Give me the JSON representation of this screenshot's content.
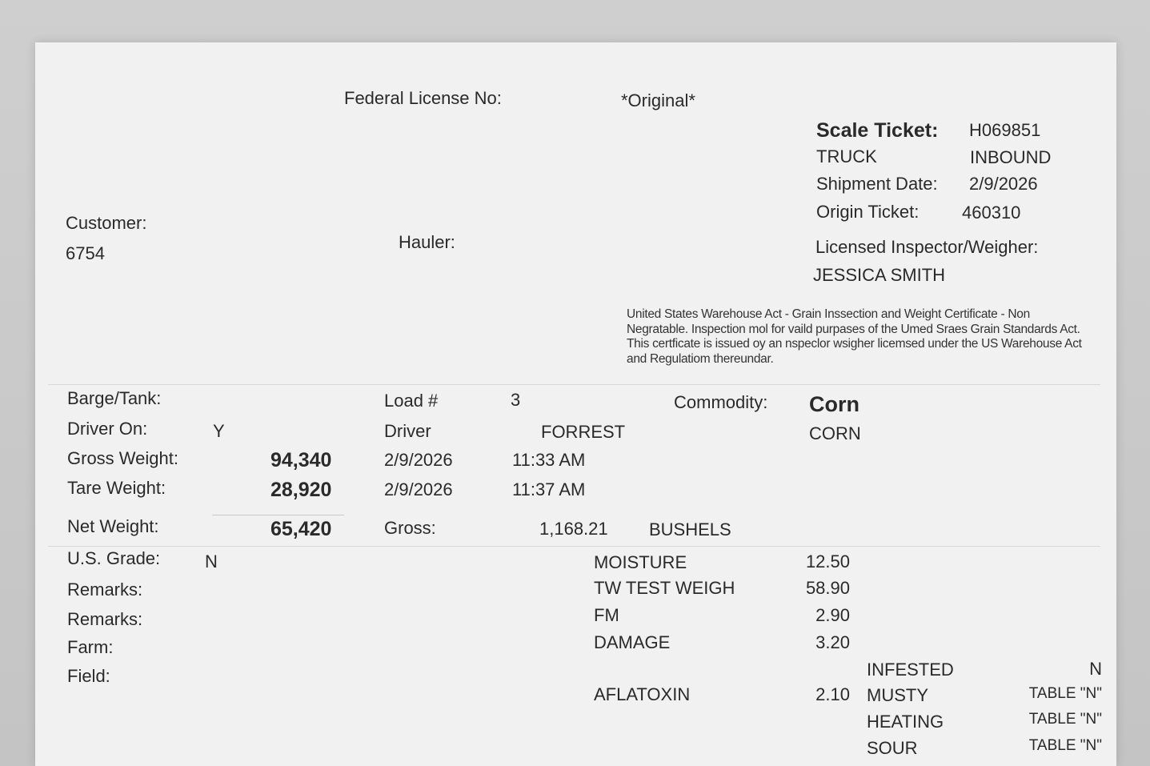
{
  "header": {
    "federal_license_label": "Federal License No:",
    "copy_type": "*Original*",
    "scale_ticket_label": "Scale Ticket:",
    "scale_ticket_no": "H069851",
    "mode": "TRUCK",
    "direction": "INBOUND",
    "shipment_date_label": "Shipment Date:",
    "shipment_date": "2/9/2026",
    "origin_ticket_label": "Origin Ticket:",
    "origin_ticket": "460310",
    "inspector_label": "Licensed Inspector/Weigher:",
    "inspector_name": "JESSICA SMITH",
    "customer_label": "Customer:",
    "customer_no": "6754",
    "hauler_label": "Hauler:",
    "certificate_text": "United States Warehouse Act - Grain Inssection and Weight Certificate - Non Negratable.  Inspection mol for vaild purpases of the Umed Sraes Grain Standards Act. This certficate is issued oy an nspeclor wsigher licemsed under the US Warehouse Act and Regulatiom thereundar."
  },
  "load": {
    "barge_label": "Barge/Tank:",
    "driver_on_label": "Driver On:",
    "driver_on": "Y",
    "gross_weight_label": "Gross Weight:",
    "gross_weight": "94,340",
    "tare_weight_label": "Tare Weight:",
    "tare_weight": "28,920",
    "net_weight_label": "Net Weight:",
    "net_weight": "65,420",
    "load_no_label": "Load #",
    "load_no": "3",
    "driver_label": "Driver",
    "driver": "FORREST",
    "gross_date": "2/9/2026",
    "gross_time": "11:33 AM",
    "tare_date": "2/9/2026",
    "tare_time": "11:37 AM",
    "gross_bushels_label": "Gross:",
    "gross_bushels": "1,168.21",
    "bushels_unit": "BUSHELS",
    "commodity_label": "Commodity:",
    "commodity": "Corn",
    "commodity_code": "CORN"
  },
  "grade": {
    "us_grade_label": "U.S. Grade:",
    "us_grade": "N",
    "remarks1_label": "Remarks:",
    "remarks2_label": "Remarks:",
    "farm_label": "Farm:",
    "field_label": "Field:",
    "factors": [
      {
        "name": "MOISTURE",
        "value": "12.50"
      },
      {
        "name": "TW TEST WEIGH",
        "value": "58.90"
      },
      {
        "name": "FM",
        "value": "2.90"
      },
      {
        "name": "DAMAGE",
        "value": "3.20"
      },
      {
        "name": "AFLATOXIN",
        "value": "2.10"
      }
    ],
    "flags": [
      {
        "name": "INFESTED",
        "value": "N"
      },
      {
        "name": "MUSTY",
        "value": "TABLE \"N\""
      },
      {
        "name": "HEATING",
        "value": "TABLE \"N\""
      },
      {
        "name": "SOUR",
        "value": "TABLE \"N\""
      }
    ]
  }
}
